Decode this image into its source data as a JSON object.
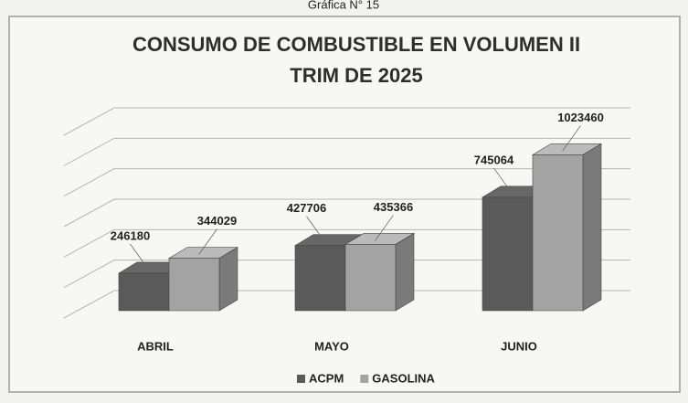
{
  "caption": "Gráfica N° 15",
  "chart_data": {
    "type": "bar3d",
    "title": [
      "CONSUMO DE COMBUSTIBLE EN VOLUMEN II",
      "TRIM DE 2025"
    ],
    "categories": [
      "ABRIL",
      "MAYO",
      "JUNIO"
    ],
    "series": [
      {
        "name": "ACPM",
        "color": "#5a5a5a",
        "values": [
          246180,
          427706,
          745064
        ]
      },
      {
        "name": "GASOLINA",
        "color": "#a3a3a3",
        "values": [
          344029,
          435366,
          1023460
        ]
      }
    ],
    "ylim": [
      0,
      1200000
    ],
    "yticks": [
      0,
      200000,
      400000,
      600000,
      800000,
      1000000,
      1200000
    ],
    "grid": true,
    "legend": "bottom"
  }
}
